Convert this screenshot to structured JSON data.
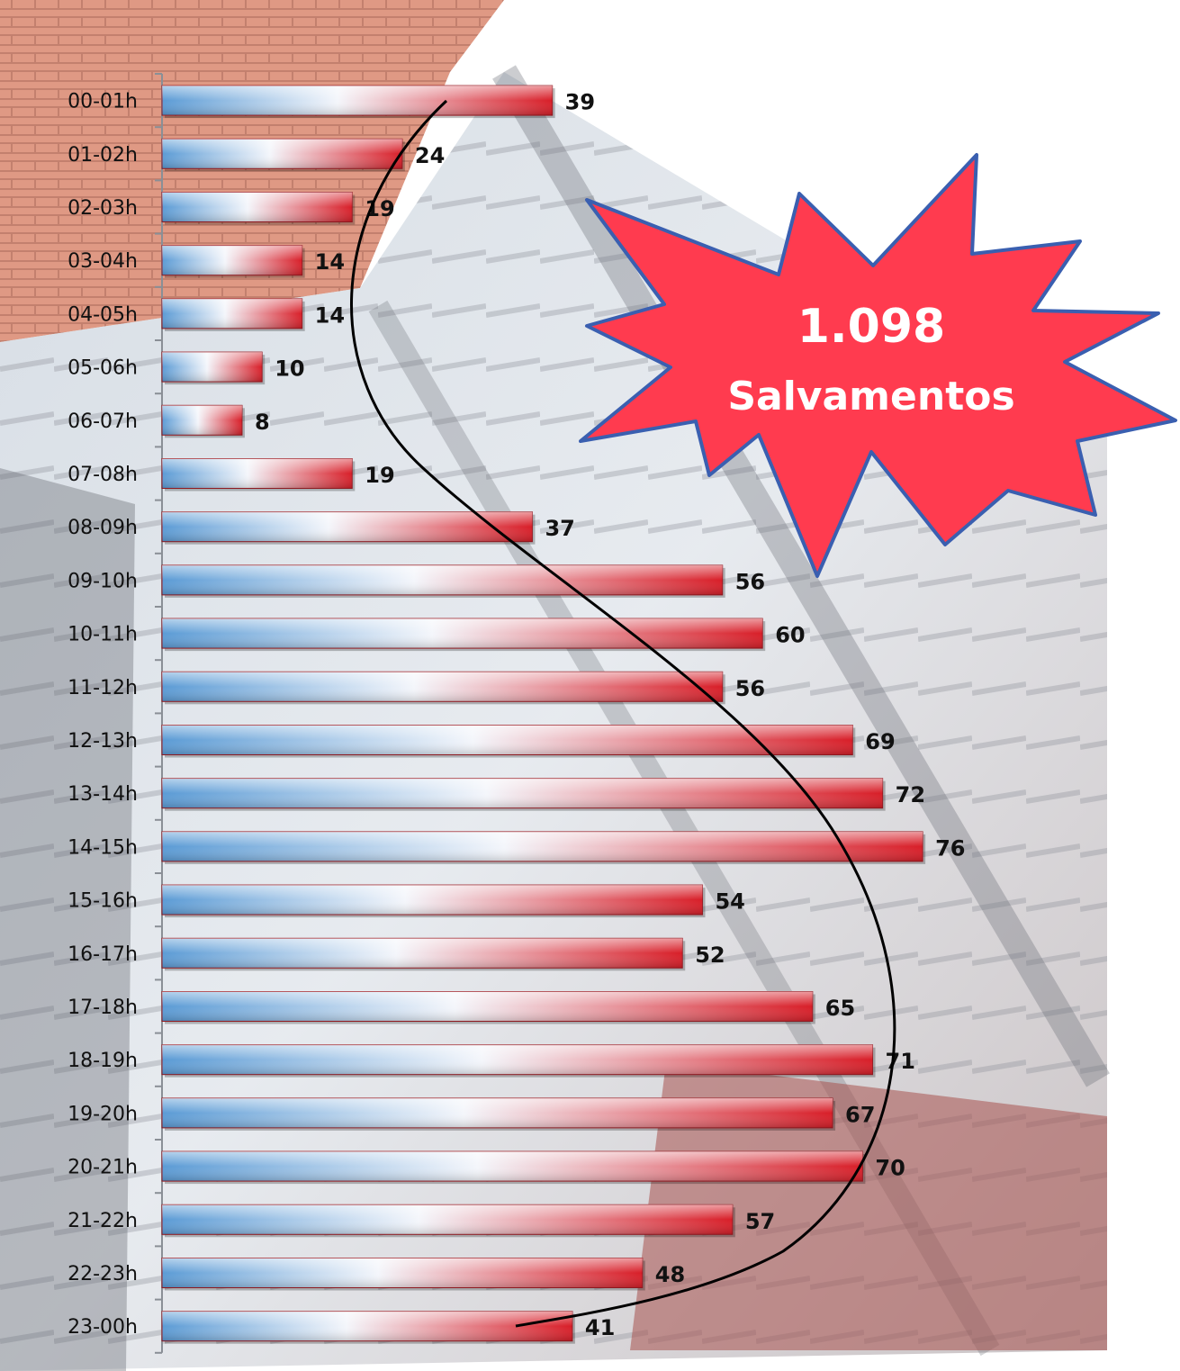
{
  "chart_data": {
    "type": "bar",
    "orientation": "horizontal",
    "categories": [
      "00-01h",
      "01-02h",
      "02-03h",
      "03-04h",
      "04-05h",
      "05-06h",
      "06-07h",
      "07-08h",
      "08-09h",
      "09-10h",
      "10-11h",
      "11-12h",
      "12-13h",
      "13-14h",
      "14-15h",
      "15-16h",
      "16-17h",
      "17-18h",
      "18-19h",
      "19-20h",
      "20-21h",
      "21-22h",
      "22-23h",
      "23-00h"
    ],
    "values": [
      39,
      24,
      19,
      14,
      14,
      10,
      8,
      19,
      37,
      56,
      60,
      56,
      69,
      72,
      76,
      54,
      52,
      65,
      71,
      67,
      70,
      57,
      48,
      41
    ],
    "xlim": [
      0,
      80
    ],
    "grid": false,
    "bar_gradient": [
      "#5b9bd5",
      "#ffffff",
      "#e0202a"
    ],
    "trend_line": true
  },
  "callout": {
    "total": "1.098",
    "label": "Salvamentos",
    "fill_color": "#ff3b4f",
    "stroke_color": "#3a5fb0"
  }
}
